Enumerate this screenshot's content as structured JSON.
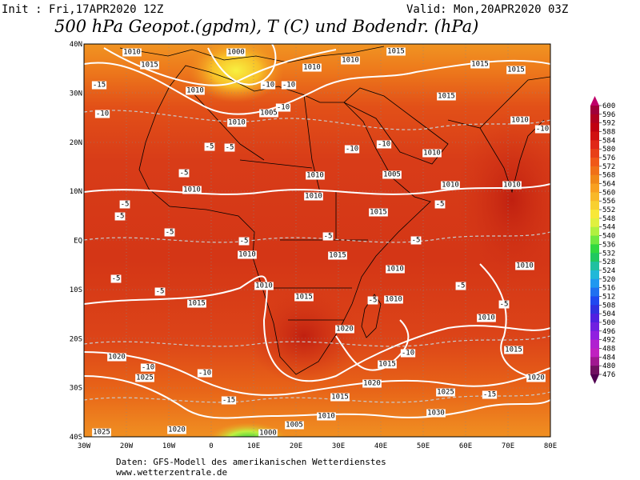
{
  "header": {
    "init": "Init : Fri,17APR2020 12Z",
    "valid": "Valid: Mon,20APR2020 03Z",
    "title": "500 hPa Geopot.(gpdm), T (C) und Bodendr. (hPa)"
  },
  "map": {
    "lat_labels": [
      "40N",
      "30N",
      "20N",
      "10N",
      "EQ",
      "10S",
      "20S",
      "30S",
      "40S"
    ],
    "lon_labels": [
      "30W",
      "20W",
      "10W",
      "0",
      "10E",
      "20E",
      "30E",
      "40E",
      "50E",
      "60E",
      "70E",
      "80E"
    ],
    "labels": [
      "1010",
      "1015",
      "1000",
      "1010",
      "1010",
      "1015",
      "1015",
      "1015",
      "1010",
      "1005",
      "1010",
      "1015",
      "1010",
      "1010",
      "1010",
      "1005",
      "1010",
      "1010",
      "1015",
      "1010",
      "1010",
      "1015",
      "1010",
      "1010",
      "1010",
      "1010",
      "1015",
      "1010",
      "1015",
      "1010",
      "1020",
      "1015",
      "1020",
      "1025",
      "1015",
      "1020",
      "1020",
      "1025",
      "1015",
      "1030",
      "1010",
      "1005",
      "1020",
      "1025",
      "1000",
      "-5",
      "-5",
      "-10",
      "-10",
      "-15",
      "-10",
      "-10",
      "-10",
      "-5",
      "-5",
      "-5",
      "-5",
      "-5",
      "-5",
      "-5",
      "-5",
      "-5",
      "-5",
      "-5",
      "-10",
      "-15",
      "-10",
      "-10",
      "-15",
      "-5",
      "-10",
      "-5",
      "-10"
    ]
  },
  "colorbar": {
    "ticks": [
      600,
      596,
      592,
      588,
      584,
      580,
      576,
      572,
      568,
      564,
      560,
      556,
      552,
      548,
      544,
      540,
      536,
      532,
      528,
      524,
      520,
      516,
      512,
      508,
      504,
      500,
      496,
      492,
      488,
      484,
      480,
      476
    ],
    "colors": [
      "#a0003a",
      "#b00020",
      "#c00010",
      "#d01010",
      "#e02818",
      "#e84018",
      "#f05818",
      "#f07018",
      "#f08818",
      "#f8a020",
      "#f8b828",
      "#f8d030",
      "#f8e838",
      "#e0f040",
      "#b0f040",
      "#70e840",
      "#30d840",
      "#20c860",
      "#20c0a0",
      "#20b8d8",
      "#2098f0",
      "#2070f0",
      "#2048f0",
      "#3030e0",
      "#5020e0",
      "#7020e0",
      "#9020e0",
      "#b020d0",
      "#c020c0",
      "#a01890",
      "#701060"
    ],
    "top_color": "#c0006a",
    "bottom_color": "#500050"
  },
  "footer": {
    "line1": "Daten: GFS-Modell des amerikanischen Wetterdienstes",
    "line2": "www.wetterzentrale.de"
  }
}
